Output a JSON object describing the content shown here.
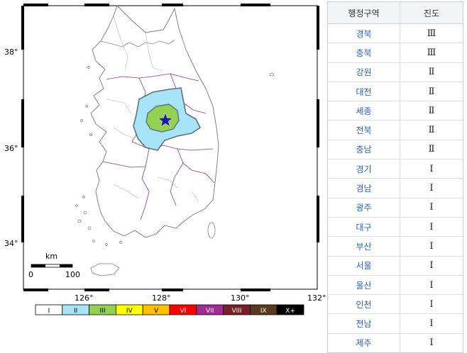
{
  "map": {
    "lat_labels": [
      "38°",
      "36°",
      "34°"
    ],
    "lon_labels": [
      "126°",
      "128°",
      "130°",
      "132°"
    ],
    "scale_bar": {
      "unit": "km",
      "start": "0",
      "end": "100"
    },
    "epicenter": "star-marker",
    "legend": {
      "levels": [
        {
          "label": "I",
          "color": "#ffffff"
        },
        {
          "label": "II",
          "color": "#a8e4f8"
        },
        {
          "label": "III",
          "color": "#93d150"
        },
        {
          "label": "IV",
          "color": "#ffff00"
        },
        {
          "label": "V",
          "color": "#ffc000"
        },
        {
          "label": "VI",
          "color": "#ff0000"
        },
        {
          "label": "VII",
          "color": "#a12a94"
        },
        {
          "label": "VIII",
          "color": "#7a1f2a"
        },
        {
          "label": "IX",
          "color": "#5a3a1e"
        },
        {
          "label": "X+",
          "color": "#000000"
        }
      ]
    }
  },
  "table": {
    "headers": [
      "행정구역",
      "진도"
    ],
    "rows": [
      {
        "region": "경북",
        "intensity": "Ⅲ"
      },
      {
        "region": "충북",
        "intensity": "Ⅲ"
      },
      {
        "region": "강원",
        "intensity": "Ⅱ"
      },
      {
        "region": "대전",
        "intensity": "Ⅱ"
      },
      {
        "region": "세종",
        "intensity": "Ⅱ"
      },
      {
        "region": "전북",
        "intensity": "Ⅱ"
      },
      {
        "region": "충남",
        "intensity": "Ⅱ"
      },
      {
        "region": "경기",
        "intensity": "Ⅰ"
      },
      {
        "region": "경남",
        "intensity": "Ⅰ"
      },
      {
        "region": "광주",
        "intensity": "Ⅰ"
      },
      {
        "region": "대구",
        "intensity": "Ⅰ"
      },
      {
        "region": "부산",
        "intensity": "Ⅰ"
      },
      {
        "region": "서울",
        "intensity": "Ⅰ"
      },
      {
        "region": "울산",
        "intensity": "Ⅰ"
      },
      {
        "region": "인천",
        "intensity": "Ⅰ"
      },
      {
        "region": "전남",
        "intensity": "Ⅰ"
      },
      {
        "region": "제주",
        "intensity": "Ⅰ"
      }
    ]
  }
}
